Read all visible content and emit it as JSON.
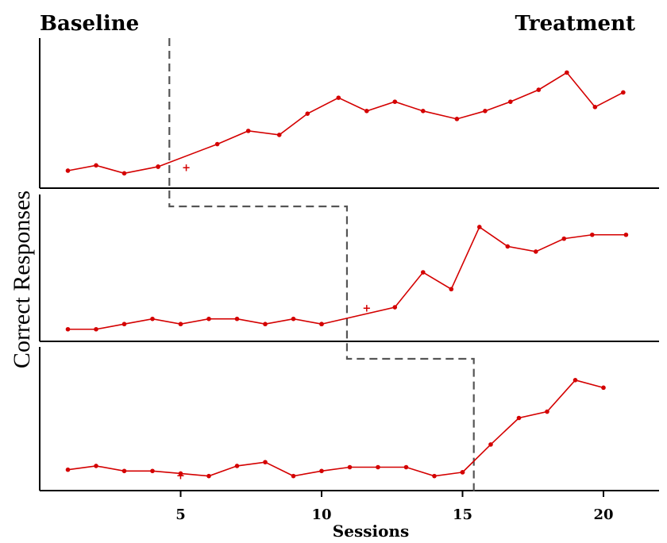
{
  "chart_data": {
    "type": "line",
    "design": "multiple-baseline",
    "phase_labels": {
      "left": "Baseline",
      "right": "Treatment"
    },
    "xlabel": "Sessions",
    "ylabel": "Correct Responses",
    "xlim": [
      0,
      21
    ],
    "x_ticks": [
      5,
      10,
      15,
      20
    ],
    "ylim": [
      0,
      10
    ],
    "line_color": "#d40000",
    "phase_line_color": "#555555",
    "panels": [
      {
        "name": "panel-1",
        "phase_change_after_session": 4.6,
        "series": [
          {
            "name": "baseline",
            "x": [
              1,
              2,
              3,
              4.2
            ],
            "y": [
              0.6,
              1.0,
              0.4,
              0.9
            ]
          },
          {
            "name": "treatment",
            "x": [
              4.2,
              6.3,
              7.4,
              8.5,
              9.5,
              10.6,
              11.6,
              12.6,
              13.6,
              14.8,
              15.8,
              16.7,
              17.7,
              18.7,
              19.7,
              20.7
            ],
            "y": [
              0.9,
              2.6,
              3.6,
              3.3,
              4.9,
              6.1,
              5.1,
              5.8,
              5.1,
              4.5,
              5.1,
              5.8,
              6.7,
              8.0,
              5.4,
              6.5
            ]
          }
        ],
        "outliers": [
          {
            "x": 5.2,
            "y": 0.8
          }
        ]
      },
      {
        "name": "panel-2",
        "phase_change_after_session": 10.9,
        "series": [
          {
            "name": "baseline",
            "x": [
              1,
              2,
              3,
              4,
              5,
              6,
              7,
              8,
              9,
              10
            ],
            "y": [
              0.2,
              0.2,
              0.6,
              1.0,
              0.6,
              1.0,
              1.0,
              0.6,
              1.0,
              0.6
            ]
          },
          {
            "name": "treatment",
            "x": [
              10,
              12.6,
              13.6,
              14.6,
              15.6,
              16.6,
              17.6,
              18.6,
              19.6,
              20.8
            ],
            "y": [
              0.6,
              1.9,
              4.6,
              3.3,
              8.1,
              6.6,
              6.2,
              7.2,
              7.5,
              7.5
            ]
          }
        ],
        "outliers": [
          {
            "x": 11.6,
            "y": 1.8
          }
        ]
      },
      {
        "name": "panel-3",
        "phase_change_after_session": 15.4,
        "series": [
          {
            "name": "baseline",
            "x": [
              1,
              2,
              3,
              4,
              5,
              6,
              7,
              8,
              9,
              10,
              11,
              12,
              13,
              14,
              15
            ],
            "y": [
              0.9,
              1.2,
              0.8,
              0.8,
              0.6,
              0.4,
              1.2,
              1.5,
              0.4,
              0.8,
              1.1,
              1.1,
              1.1,
              0.4,
              0.7
            ]
          },
          {
            "name": "treatment",
            "x": [
              15,
              16,
              17,
              18,
              19,
              20
            ],
            "y": [
              0.7,
              2.9,
              5.0,
              5.5,
              8.0,
              7.4
            ]
          }
        ],
        "outliers": [
          {
            "x": 5,
            "y": 0.4
          }
        ]
      }
    ]
  }
}
